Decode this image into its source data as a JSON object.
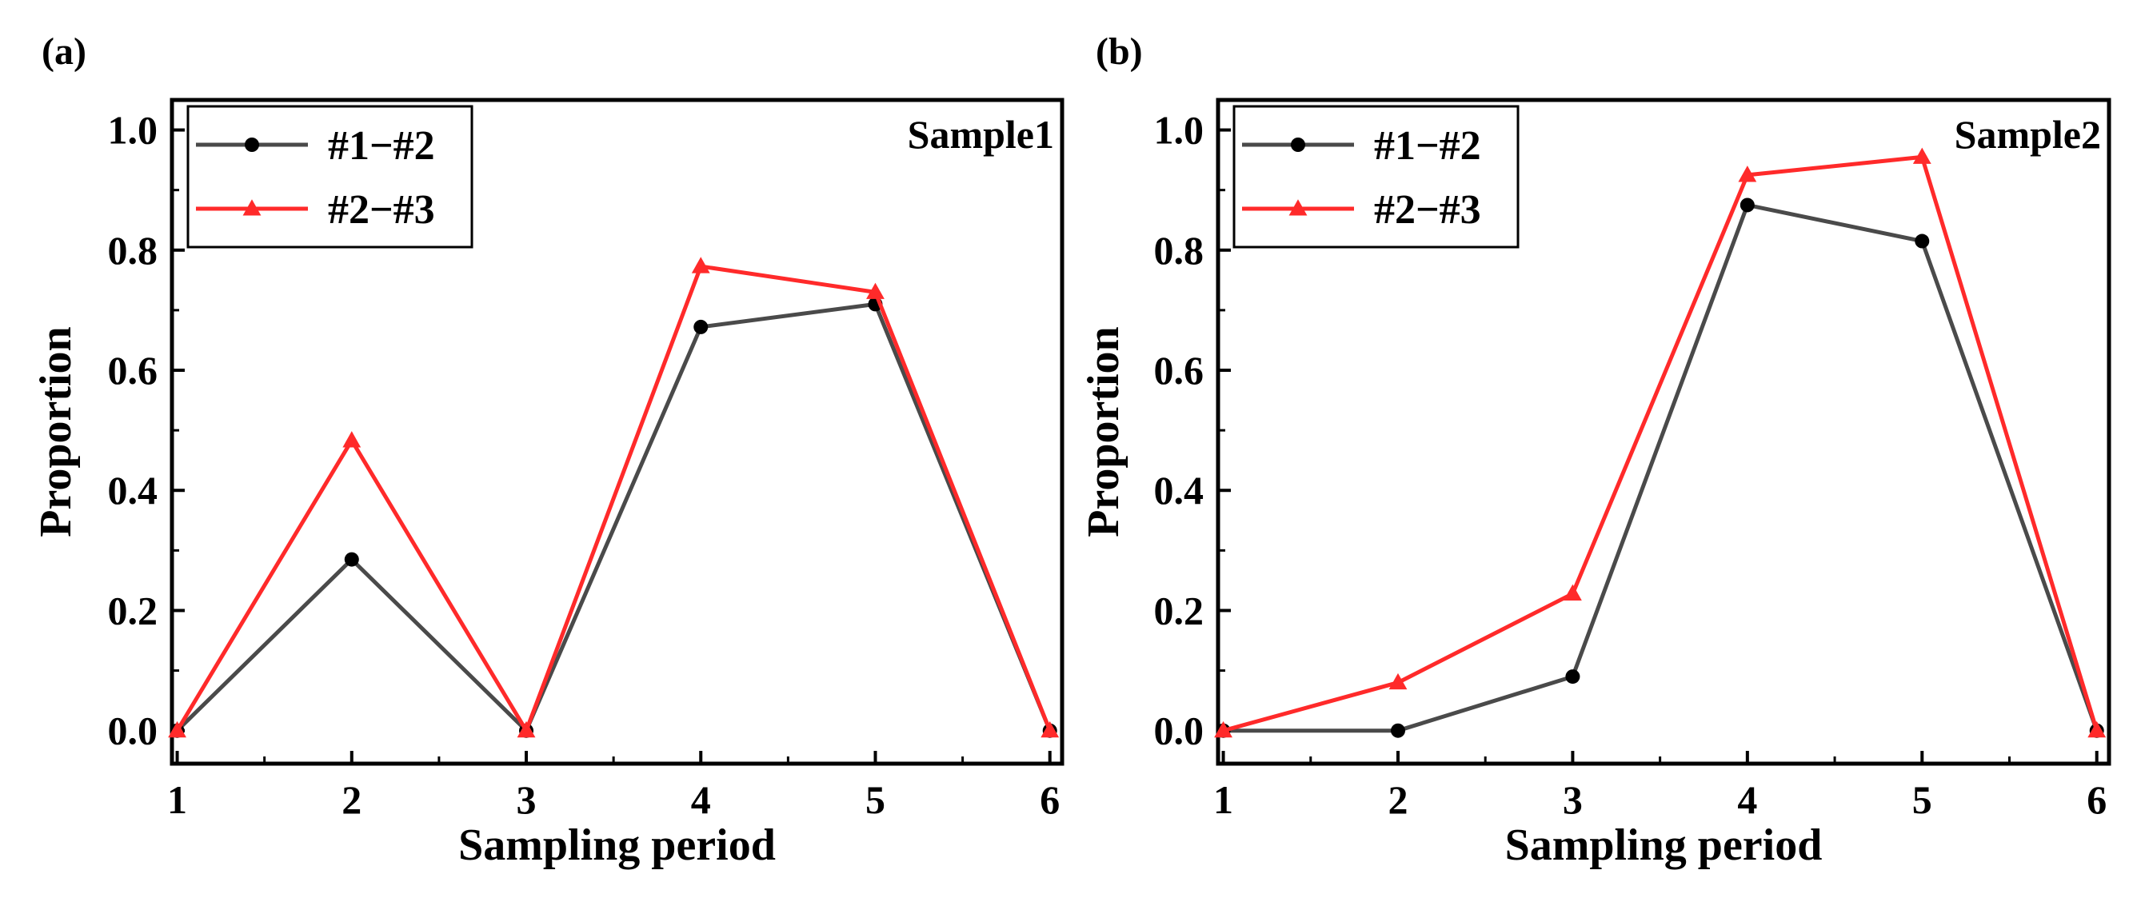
{
  "colors": {
    "series1": "#4a4a4a",
    "series2": "#ff2a2a",
    "axis": "#000000",
    "background": "#ffffff"
  },
  "chart_data": [
    {
      "panel_label": "(a)",
      "type": "line",
      "annotation": "Sample1",
      "xlabel": "Sampling period",
      "ylabel": "Proportion",
      "x": [
        1,
        2,
        3,
        4,
        5,
        6
      ],
      "xlim": [
        0.97,
        6.07
      ],
      "ylim": [
        -0.055,
        1.05
      ],
      "xticks": [
        1,
        2,
        3,
        4,
        5,
        6
      ],
      "yticks": [
        0.0,
        0.2,
        0.4,
        0.6,
        0.8,
        1.0
      ],
      "ytick_labels": [
        "0.0",
        "0.2",
        "0.4",
        "0.6",
        "0.8",
        "1.0"
      ],
      "legend_position": "top-left",
      "series": [
        {
          "name": "#1−#2",
          "marker": "circle",
          "values": [
            0.0,
            0.285,
            0.0,
            0.672,
            0.71,
            0.0
          ]
        },
        {
          "name": "#2−#3",
          "marker": "triangle",
          "values": [
            0.0,
            0.483,
            0.0,
            0.773,
            0.73,
            0.0
          ]
        }
      ]
    },
    {
      "panel_label": "(b)",
      "type": "line",
      "annotation": "Sample2",
      "xlabel": "Sampling period",
      "ylabel": "Proportion",
      "x": [
        1,
        2,
        3,
        4,
        5,
        6
      ],
      "xlim": [
        0.97,
        6.07
      ],
      "ylim": [
        -0.055,
        1.05
      ],
      "xticks": [
        1,
        2,
        3,
        4,
        5,
        6
      ],
      "yticks": [
        0.0,
        0.2,
        0.4,
        0.6,
        0.8,
        1.0
      ],
      "ytick_labels": [
        "0.0",
        "0.2",
        "0.4",
        "0.6",
        "0.8",
        "1.0"
      ],
      "legend_position": "top-left",
      "series": [
        {
          "name": "#1−#2",
          "marker": "circle",
          "values": [
            0.0,
            0.0,
            0.09,
            0.875,
            0.815,
            0.0
          ]
        },
        {
          "name": "#2−#3",
          "marker": "triangle",
          "values": [
            0.0,
            0.08,
            0.228,
            0.925,
            0.955,
            0.0
          ]
        }
      ]
    }
  ]
}
